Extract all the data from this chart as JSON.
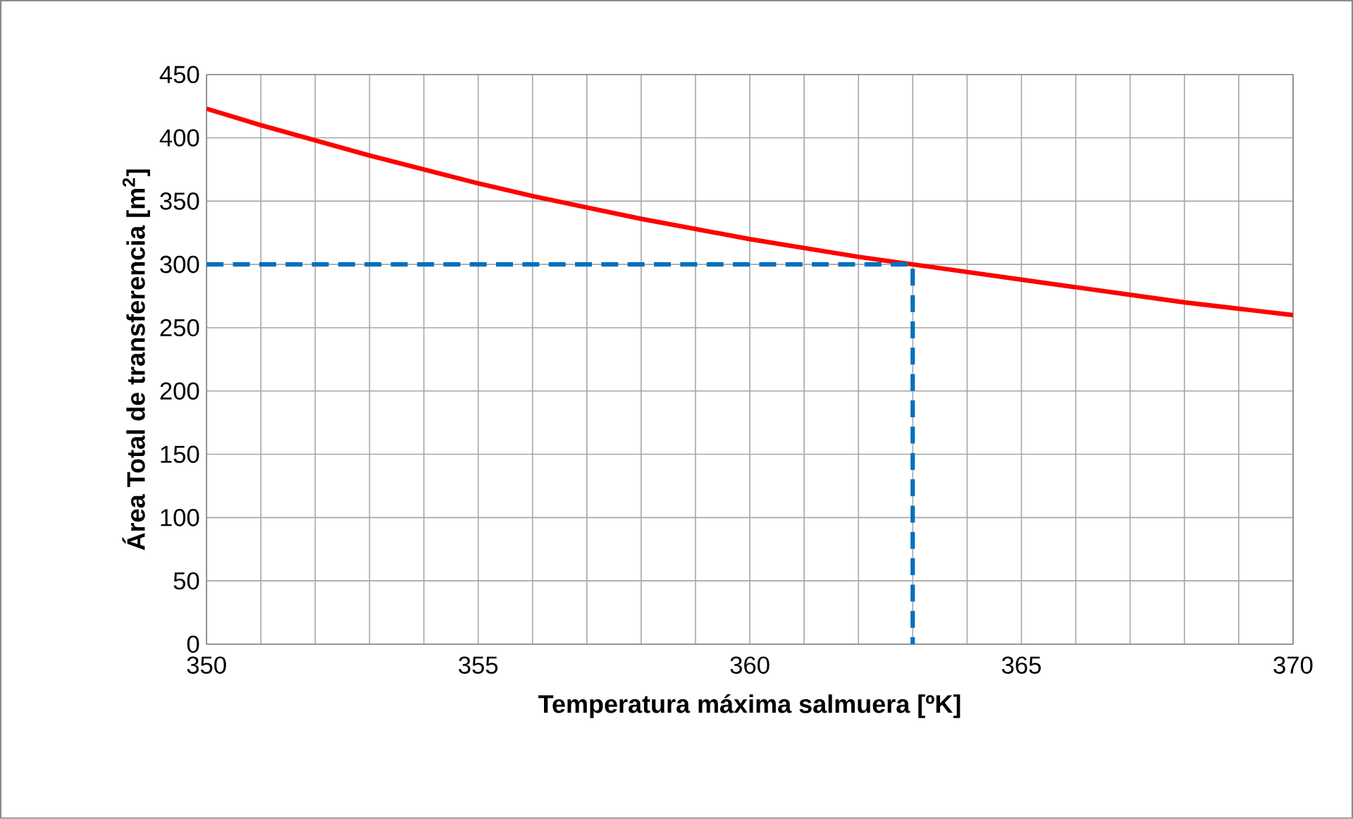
{
  "chart_data": {
    "type": "line",
    "xlabel": "Temperatura máxima salmuera [ºK]",
    "ylabel": "Área Total de transferencia [m$^{2}$]",
    "xlim": [
      350,
      370
    ],
    "ylim": [
      0,
      450
    ],
    "xticks": [
      350,
      {
        "value": 351,
        "label": null
      },
      {
        "value": 352,
        "label": null
      },
      {
        "value": 353,
        "label": null
      },
      {
        "value": 354,
        "label": null
      },
      355,
      {
        "value": 356,
        "label": null
      },
      {
        "value": 357,
        "label": null
      },
      {
        "value": 358,
        "label": null
      },
      {
        "value": 359,
        "label": null
      },
      360,
      {
        "value": 361,
        "label": null
      },
      {
        "value": 362,
        "label": null
      },
      {
        "value": 363,
        "label": null
      },
      {
        "value": 364,
        "label": null
      },
      365,
      {
        "value": 366,
        "label": null
      },
      {
        "value": 367,
        "label": null
      },
      {
        "value": 368,
        "label": null
      },
      {
        "value": 369,
        "label": null
      },
      370
    ],
    "yticks": [
      0,
      50,
      100,
      150,
      200,
      250,
      300,
      350,
      400,
      450
    ],
    "grid": true,
    "series": [
      {
        "color": "#ff0000",
        "line_style": "solid",
        "x": [
          350,
          351,
          352,
          353,
          354,
          355,
          356,
          357,
          358,
          359,
          360,
          361,
          362,
          363,
          364,
          365,
          366,
          367,
          368,
          369,
          370
        ],
        "values": [
          423,
          410,
          398,
          386,
          375,
          364,
          354,
          345,
          336,
          328,
          320,
          313,
          306,
          300,
          294,
          288,
          282,
          276,
          270,
          265,
          260
        ]
      },
      {
        "color": "#0070c0",
        "line_style": "dashed",
        "x": [
          350,
          363,
          363
        ],
        "values": [
          300,
          300,
          0
        ]
      }
    ]
  }
}
